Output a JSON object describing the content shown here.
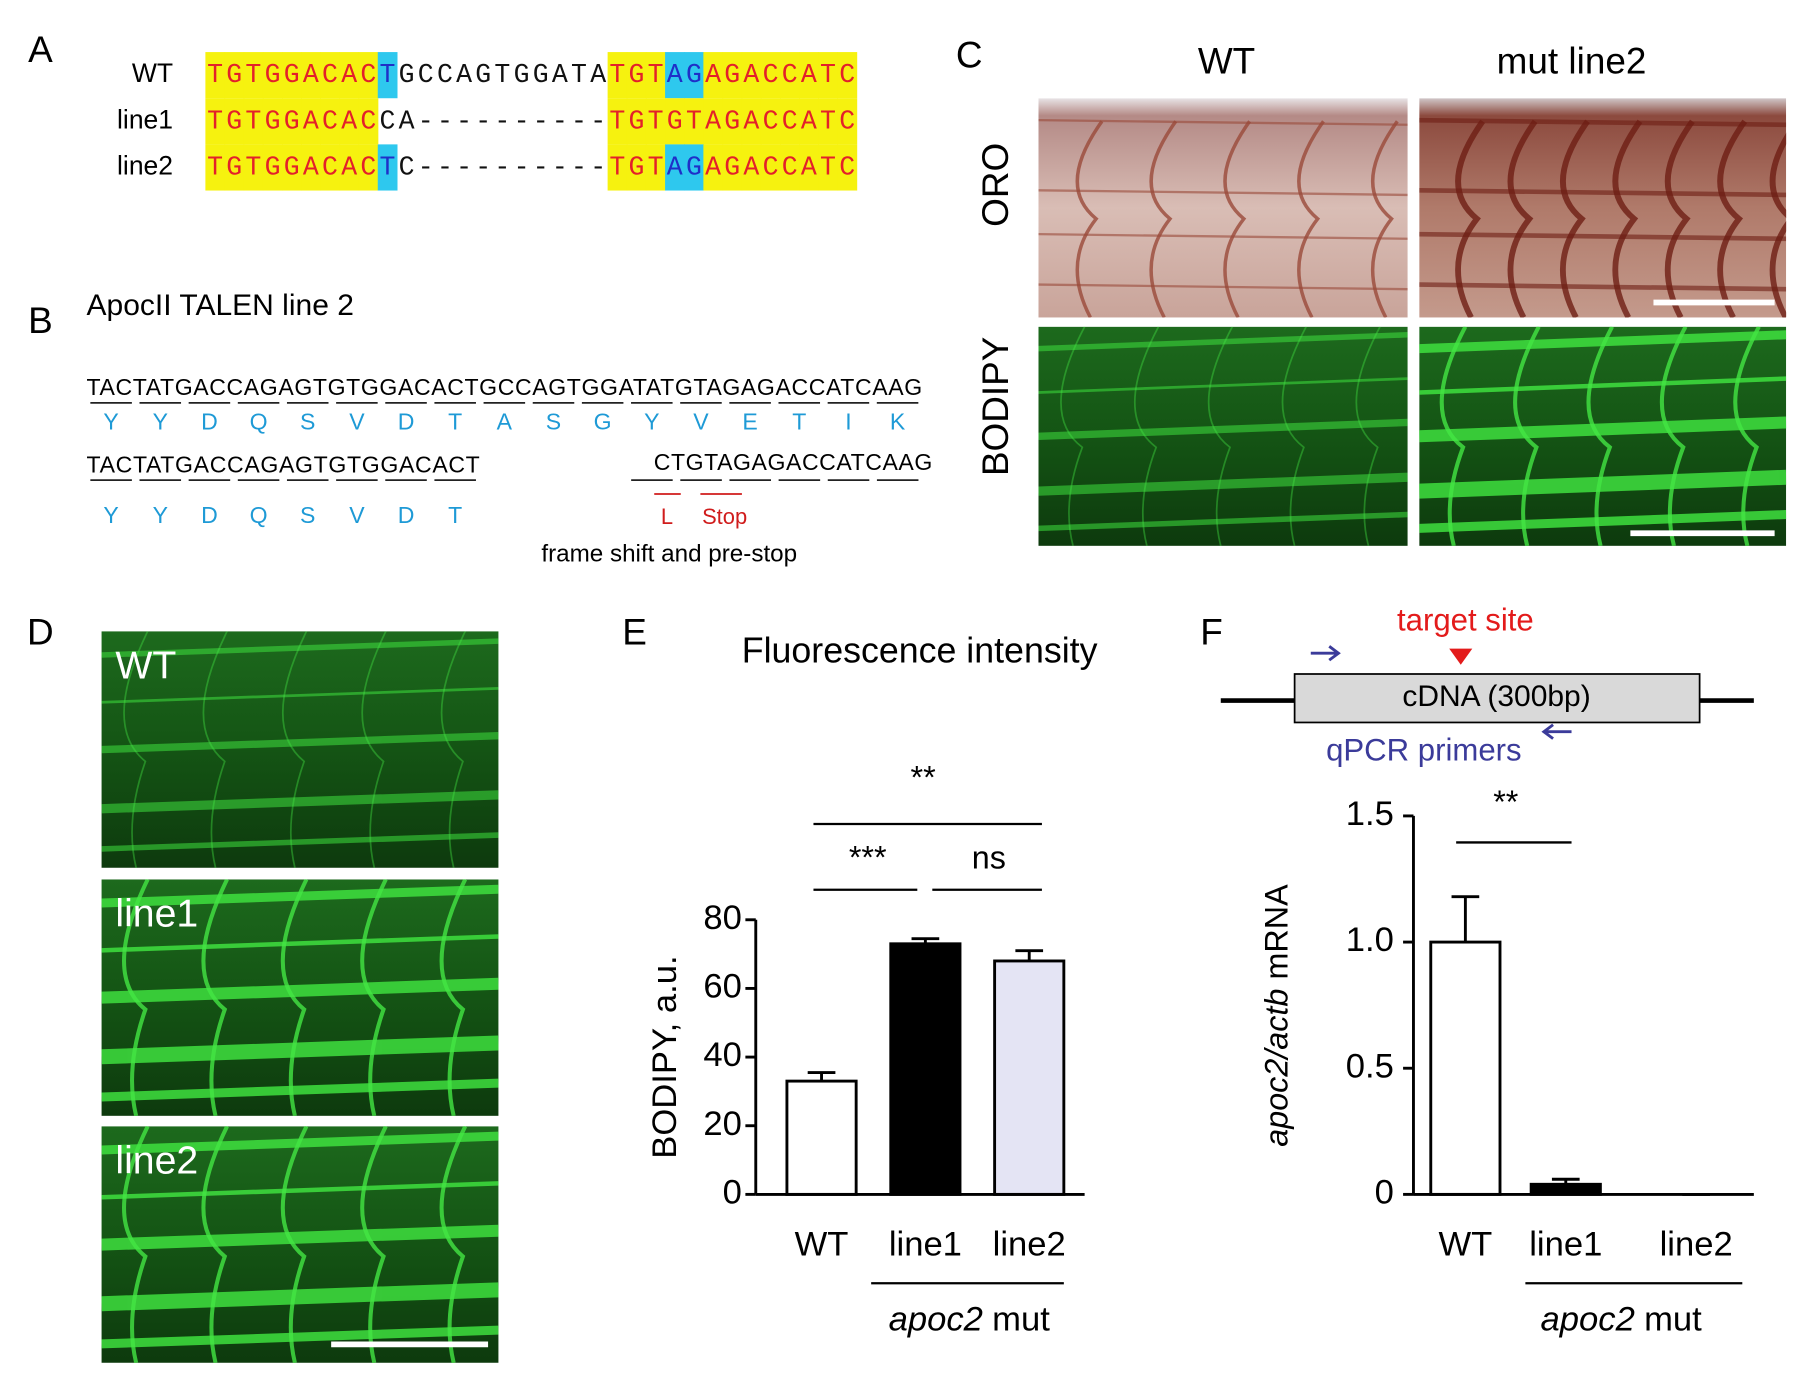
{
  "panel_labels": [
    "A",
    "B",
    "C",
    "D",
    "E",
    "F"
  ],
  "panel_a": {
    "rows": [
      {
        "name": "WT",
        "sequence": "TGTGGACACTGCCAGTGGATATGTAGAGACCATC"
      },
      {
        "name": "line1",
        "sequence": "TGTGGACACCA----------TGTGTAGACCATC"
      },
      {
        "name": "line2",
        "sequence": "TGTGGACACTC----------TGTAGAGACCATC"
      }
    ]
  },
  "panel_b": {
    "title": "ApocII TALEN line 2",
    "wt_sequence": "TACTATGACCAGAGTGTGGACACTGCCAGTGGATATGTAGAGACCATCAAG",
    "wt_residues": [
      "Y",
      "Y",
      "D",
      "Q",
      "S",
      "V",
      "D",
      "T",
      "A",
      "S",
      "G",
      "Y",
      "V",
      "E",
      "T",
      "I",
      "K"
    ],
    "mut_sequence_left": "TACTATGACCAGAGTGTGGACACT",
    "mut_sequence_right": "CTGTAGAGACCATCAAG",
    "mut_residues": [
      "Y",
      "Y",
      "D",
      "Q",
      "S",
      "V",
      "D",
      "T"
    ],
    "mut_shifted_residues": [
      "L",
      "Stop"
    ],
    "note": "frame shift and pre-stop"
  },
  "panel_c": {
    "columns": [
      "WT",
      "mut line2"
    ],
    "rows": [
      "ORO",
      "BODIPY"
    ]
  },
  "panel_d": {
    "labels": [
      "WT",
      "line1",
      "line2"
    ]
  },
  "chart_data": [
    {
      "type": "bar",
      "title": "Fluorescence intensity",
      "y_label": "BODIPY, a.u.",
      "categories": [
        "WT",
        "line1",
        "line2"
      ],
      "values": [
        33,
        73,
        68
      ],
      "errors": [
        2.5,
        1.5,
        3
      ],
      "colors": [
        "#ffffff",
        "#000000",
        "#e4e4f4"
      ],
      "ylim": [
        0,
        80
      ],
      "yticks": [
        0,
        20,
        40,
        60,
        80
      ],
      "annotations": [
        "**",
        "***",
        "ns"
      ],
      "group_label": [
        "apoc2",
        "mut"
      ]
    },
    {
      "type": "bar",
      "y_label": [
        "apoc2/actb",
        "mRNA"
      ],
      "categories": [
        "WT",
        "line1",
        "line2"
      ],
      "values": [
        1.0,
        0.04,
        0
      ],
      "errors": [
        0.18,
        0.02,
        0
      ],
      "colors": [
        "#ffffff",
        "#000000",
        "#000000"
      ],
      "ylim": [
        0,
        1.5
      ],
      "yticks": [
        0,
        0.5,
        {
          "value": 1,
          "label": "1.0"
        },
        1.5
      ],
      "annotations": [
        "**"
      ],
      "group_label": [
        "apoc2",
        "mut"
      ],
      "diagram": {
        "target": "target site",
        "insert": "cDNA (300bp)",
        "primers": "qPCR primers"
      }
    }
  ]
}
